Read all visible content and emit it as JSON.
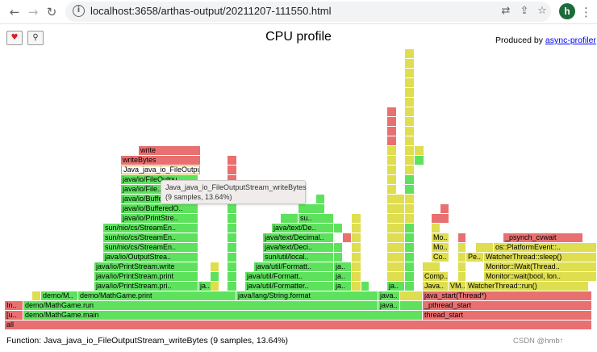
{
  "browser": {
    "url_host": "localhost:",
    "url_rest": "3658/arthas-output/20211207-111550.html",
    "avatar_letter": "h"
  },
  "page": {
    "title": "CPU profile",
    "produced_by": "Produced by",
    "produced_link": "async-profiler",
    "status": "Function: Java_java_io_FileOutputStream_writeBytes (9 samples, 13.64%)",
    "tooltip_line1": "Java_java_io_FileOutputStream_writeBytes",
    "tooltip_line2": "(9 samples, 13.64%)",
    "watermark": "CSDN @hmb↑"
  },
  "colors": {
    "red": "#e87070",
    "red_dark": "#e06060",
    "green": "#5ee25e",
    "green_dark": "#4fd04f",
    "yellow": "#dede50",
    "yellow_dark": "#d4d046",
    "highlight": "#ffffff"
  },
  "frames": [
    {
      "label": "all",
      "color": "red",
      "level": 0,
      "start": 0,
      "end": 728
    },
    {
      "label": "[u..",
      "color": "red",
      "level": 1,
      "start": 0,
      "end": 23
    },
    {
      "label": "demo/MathGame.main",
      "color": "green",
      "level": 1,
      "start": 23,
      "end": 518
    },
    {
      "label": "thread_start",
      "color": "red",
      "level": 1,
      "start": 518,
      "end": 728
    },
    {
      "label": "In..",
      "color": "red",
      "level": 2,
      "start": 0,
      "end": 23
    },
    {
      "label": "demo/MathGame.run",
      "color": "green",
      "level": 2,
      "start": 23,
      "end": 463
    },
    {
      "label": "java..",
      "color": "green",
      "level": 2,
      "start": 463,
      "end": 490
    },
    {
      "label": "",
      "color": "green",
      "level": 2,
      "start": 490,
      "end": 518
    },
    {
      "label": "_pthread_start",
      "color": "red",
      "level": 2,
      "start": 518,
      "end": 728
    },
    {
      "label": "",
      "color": "yellow",
      "level": 3,
      "start": 34,
      "end": 45
    },
    {
      "label": "demo/M..",
      "color": "green",
      "level": 3,
      "start": 45,
      "end": 91
    },
    {
      "label": "demo/MathGame.print",
      "color": "green",
      "level": 3,
      "start": 91,
      "end": 287
    },
    {
      "label": "java/lang/String.format",
      "color": "green",
      "level": 3,
      "start": 287,
      "end": 463
    },
    {
      "label": "java..",
      "color": "green",
      "level": 3,
      "start": 463,
      "end": 490
    },
    {
      "label": "",
      "color": "yellow",
      "level": 3,
      "start": 490,
      "end": 518
    },
    {
      "label": "java_start(Thread*)",
      "color": "red",
      "level": 3,
      "start": 518,
      "end": 728
    },
    {
      "label": "java/io/PrintStream.pri..",
      "color": "green",
      "level": 4,
      "start": 111,
      "end": 240
    },
    {
      "label": "ja..",
      "color": "green",
      "level": 4,
      "start": 240,
      "end": 262
    },
    {
      "label": "",
      "color": "yellow",
      "level": 4,
      "start": 255,
      "end": 266
    },
    {
      "label": "",
      "color": "green",
      "level": 4,
      "start": 276,
      "end": 288
    },
    {
      "label": "java/util/Formatter..",
      "color": "green",
      "level": 4,
      "start": 298,
      "end": 408
    },
    {
      "label": "ja..",
      "color": "green",
      "level": 4,
      "start": 408,
      "end": 430
    },
    {
      "label": "",
      "color": "yellow",
      "level": 4,
      "start": 430,
      "end": 442
    },
    {
      "label": "",
      "color": "green",
      "level": 4,
      "start": 442,
      "end": 452
    },
    {
      "label": "ja..",
      "color": "green",
      "level": 4,
      "start": 474,
      "end": 496
    },
    {
      "label": "",
      "color": "green",
      "level": 4,
      "start": 496,
      "end": 508
    },
    {
      "label": "Java..",
      "color": "yellow",
      "level": 4,
      "start": 518,
      "end": 550
    },
    {
      "label": "VM..",
      "color": "yellow",
      "level": 4,
      "start": 550,
      "end": 572
    },
    {
      "label": "WatcherThread::run()",
      "color": "yellow",
      "level": 4,
      "start": 572,
      "end": 724
    },
    {
      "label": "java/io/PrintStream.print",
      "color": "green",
      "level": 5,
      "start": 111,
      "end": 240
    },
    {
      "label": "",
      "color": "green",
      "level": 5,
      "start": 255,
      "end": 266
    },
    {
      "label": "",
      "color": "green",
      "level": 5,
      "start": 276,
      "end": 288
    },
    {
      "label": "java/util/Formatt..",
      "color": "green",
      "level": 5,
      "start": 298,
      "end": 408
    },
    {
      "label": "ja..",
      "color": "green",
      "level": 5,
      "start": 408,
      "end": 430
    },
    {
      "label": "",
      "color": "yellow",
      "level": 5,
      "start": 430,
      "end": 442
    },
    {
      "label": "",
      "color": "yellow",
      "level": 5,
      "start": 474,
      "end": 496
    },
    {
      "label": "",
      "color": "green",
      "level": 5,
      "start": 496,
      "end": 508
    },
    {
      "label": "Comp..",
      "color": "yellow",
      "level": 5,
      "start": 518,
      "end": 550
    },
    {
      "label": "",
      "color": "yellow",
      "level": 5,
      "start": 562,
      "end": 572
    },
    {
      "label": "Monitor::wait(bool, lon..",
      "color": "yellow",
      "level": 5,
      "start": 594,
      "end": 734
    },
    {
      "label": "java/io/PrintStream.write",
      "color": "green",
      "level": 6,
      "start": 111,
      "end": 240
    },
    {
      "label": "",
      "color": "yellow",
      "level": 6,
      "start": 255,
      "end": 266
    },
    {
      "label": "",
      "color": "green",
      "level": 6,
      "start": 276,
      "end": 288
    },
    {
      "label": "java/util/Formatt..",
      "color": "green",
      "level": 6,
      "start": 309,
      "end": 408
    },
    {
      "label": "ja..",
      "color": "green",
      "level": 6,
      "start": 408,
      "end": 430
    },
    {
      "label": "",
      "color": "yellow",
      "level": 6,
      "start": 430,
      "end": 442
    },
    {
      "label": "",
      "color": "yellow",
      "level": 6,
      "start": 474,
      "end": 496
    },
    {
      "label": "",
      "color": "green",
      "level": 6,
      "start": 496,
      "end": 508
    },
    {
      "label": "",
      "color": "yellow",
      "level": 6,
      "start": 518,
      "end": 540
    },
    {
      "label": "",
      "color": "yellow",
      "level": 6,
      "start": 562,
      "end": 572
    },
    {
      "label": "Monitor::IWait(Thread..",
      "color": "yellow",
      "level": 6,
      "start": 594,
      "end": 734
    },
    {
      "label": "java/io/OutputStrea..",
      "color": "green",
      "level": 7,
      "start": 122,
      "end": 240
    },
    {
      "label": "",
      "color": "green",
      "level": 7,
      "start": 276,
      "end": 288
    },
    {
      "label": "sun/util/local..",
      "color": "green",
      "level": 7,
      "start": 320,
      "end": 408
    },
    {
      "label": "",
      "color": "green",
      "level": 7,
      "start": 408,
      "end": 419
    },
    {
      "label": "",
      "color": "yellow",
      "level": 7,
      "start": 430,
      "end": 442
    },
    {
      "label": "",
      "color": "yellow",
      "level": 7,
      "start": 474,
      "end": 496
    },
    {
      "label": "",
      "color": "green",
      "level": 7,
      "start": 496,
      "end": 508
    },
    {
      "label": "Co..",
      "color": "yellow",
      "level": 7,
      "start": 529,
      "end": 551
    },
    {
      "label": "",
      "color": "yellow",
      "level": 7,
      "start": 562,
      "end": 572
    },
    {
      "label": "Pe..",
      "color": "yellow",
      "level": 7,
      "start": 572,
      "end": 594
    },
    {
      "label": "WatcherThread::sleep()",
      "color": "yellow",
      "level": 7,
      "start": 594,
      "end": 734
    },
    {
      "label": "sun/nio/cs/StreamEn..",
      "color": "green",
      "level": 8,
      "start": 122,
      "end": 240
    },
    {
      "label": "",
      "color": "green",
      "level": 8,
      "start": 276,
      "end": 288
    },
    {
      "label": "java/text/Deci..",
      "color": "green",
      "level": 8,
      "start": 320,
      "end": 408
    },
    {
      "label": "",
      "color": "green",
      "level": 8,
      "start": 408,
      "end": 419
    },
    {
      "label": "",
      "color": "yellow",
      "level": 8,
      "start": 430,
      "end": 442
    },
    {
      "label": "",
      "color": "yellow",
      "level": 8,
      "start": 474,
      "end": 496
    },
    {
      "label": "",
      "color": "green",
      "level": 8,
      "start": 496,
      "end": 508
    },
    {
      "label": "Mo..",
      "color": "yellow",
      "level": 8,
      "start": 529,
      "end": 551
    },
    {
      "label": "",
      "color": "yellow",
      "level": 8,
      "start": 562,
      "end": 572
    },
    {
      "label": "",
      "color": "yellow",
      "level": 8,
      "start": 584,
      "end": 606
    },
    {
      "label": "os::PlatformEvent::..",
      "color": "yellow",
      "level": 8,
      "start": 606,
      "end": 734
    },
    {
      "label": "sun/nio/cs/StreamEn..",
      "color": "green",
      "level": 9,
      "start": 122,
      "end": 240
    },
    {
      "label": "",
      "color": "green",
      "level": 9,
      "start": 276,
      "end": 288
    },
    {
      "label": "java/text/Decimal..",
      "color": "green",
      "level": 9,
      "start": 320,
      "end": 408
    },
    {
      "label": "",
      "color": "red",
      "level": 9,
      "start": 419,
      "end": 430
    },
    {
      "label": "",
      "color": "yellow",
      "level": 9,
      "start": 430,
      "end": 442
    },
    {
      "label": "",
      "color": "yellow",
      "level": 9,
      "start": 474,
      "end": 496
    },
    {
      "label": "",
      "color": "green",
      "level": 9,
      "start": 496,
      "end": 508
    },
    {
      "label": "Mo..",
      "color": "yellow",
      "level": 9,
      "start": 529,
      "end": 551
    },
    {
      "label": "",
      "color": "red",
      "level": 9,
      "start": 562,
      "end": 572
    },
    {
      "label": "_psynch_cvwait",
      "color": "red",
      "level": 9,
      "start": 618,
      "end": 717
    },
    {
      "label": "sun/nio/cs/StreamEn..",
      "color": "green",
      "level": 10,
      "start": 122,
      "end": 240
    },
    {
      "label": "",
      "color": "green",
      "level": 10,
      "start": 276,
      "end": 288
    },
    {
      "label": "java/text/De..",
      "color": "green",
      "level": 10,
      "start": 331,
      "end": 408
    },
    {
      "label": "",
      "color": "green",
      "level": 10,
      "start": 408,
      "end": 419
    },
    {
      "label": "",
      "color": "yellow",
      "level": 10,
      "start": 430,
      "end": 442
    },
    {
      "label": "",
      "color": "yellow",
      "level": 10,
      "start": 474,
      "end": 496
    },
    {
      "label": "",
      "color": "green",
      "level": 10,
      "start": 496,
      "end": 508
    },
    {
      "label": "",
      "color": "yellow",
      "level": 10,
      "start": 529,
      "end": 540
    },
    {
      "label": "java/io/PrintStre..",
      "color": "green",
      "level": 11,
      "start": 144,
      "end": 240
    },
    {
      "label": "",
      "color": "green",
      "level": 11,
      "start": 276,
      "end": 288
    },
    {
      "label": "",
      "color": "green",
      "level": 11,
      "start": 342,
      "end": 364
    },
    {
      "label": "su..",
      "color": "green",
      "level": 11,
      "start": 364,
      "end": 408
    },
    {
      "label": "",
      "color": "yellow",
      "level": 11,
      "start": 430,
      "end": 442
    },
    {
      "label": "",
      "color": "yellow",
      "level": 11,
      "start": 474,
      "end": 496
    },
    {
      "label": "",
      "color": "yellow",
      "level": 11,
      "start": 496,
      "end": 508
    },
    {
      "label": "",
      "color": "red",
      "level": 11,
      "start": 529,
      "end": 551
    },
    {
      "label": "java/io/BufferedO..",
      "color": "green",
      "level": 12,
      "start": 144,
      "end": 240
    },
    {
      "label": "",
      "color": "green",
      "level": 12,
      "start": 276,
      "end": 288
    },
    {
      "label": "",
      "color": "green",
      "level": 12,
      "start": 364,
      "end": 397
    },
    {
      "label": "",
      "color": "yellow",
      "level": 12,
      "start": 474,
      "end": 496
    },
    {
      "label": "",
      "color": "yellow",
      "level": 12,
      "start": 496,
      "end": 508
    },
    {
      "label": "",
      "color": "red",
      "level": 12,
      "start": 540,
      "end": 551
    },
    {
      "label": "java/io/Buffere..",
      "color": "green",
      "level": 13,
      "start": 144,
      "end": 240
    },
    {
      "label": "",
      "color": "green",
      "level": 13,
      "start": 276,
      "end": 288
    },
    {
      "label": "",
      "color": "green",
      "level": 13,
      "start": 386,
      "end": 397
    },
    {
      "label": "",
      "color": "yellow",
      "level": 13,
      "start": 474,
      "end": 496
    },
    {
      "label": "",
      "color": "yellow",
      "level": 13,
      "start": 496,
      "end": 508
    },
    {
      "label": "java/io/File..",
      "color": "green",
      "level": 14,
      "start": 144,
      "end": 240
    },
    {
      "label": "",
      "color": "green",
      "level": 14,
      "start": 276,
      "end": 288
    },
    {
      "label": "",
      "color": "yellow",
      "level": 14,
      "start": 474,
      "end": 486
    },
    {
      "label": "",
      "color": "green",
      "level": 14,
      "start": 496,
      "end": 508
    },
    {
      "label": "java/io/FileOutpu..",
      "color": "green",
      "level": 15,
      "start": 144,
      "end": 240
    },
    {
      "label": "",
      "color": "red",
      "level": 15,
      "start": 276,
      "end": 288
    },
    {
      "label": "",
      "color": "yellow",
      "level": 15,
      "start": 474,
      "end": 486
    },
    {
      "label": "",
      "color": "green",
      "level": 15,
      "start": 496,
      "end": 508
    },
    {
      "label": "Java_java_io_FileOutput",
      "color": "highlight",
      "level": 16,
      "start": 144,
      "end": 243
    },
    {
      "label": "",
      "color": "red",
      "level": 16,
      "start": 276,
      "end": 288
    },
    {
      "label": "",
      "color": "yellow",
      "level": 16,
      "start": 474,
      "end": 486
    },
    {
      "label": "",
      "color": "yellow",
      "level": 16,
      "start": 496,
      "end": 508
    },
    {
      "label": "writeBytes",
      "color": "red",
      "level": 17,
      "start": 144,
      "end": 243
    },
    {
      "label": "",
      "color": "red",
      "level": 17,
      "start": 276,
      "end": 288
    },
    {
      "label": "",
      "color": "yellow",
      "level": 17,
      "start": 474,
      "end": 486
    },
    {
      "label": "",
      "color": "yellow",
      "level": 17,
      "start": 496,
      "end": 508
    },
    {
      "label": "",
      "color": "green",
      "level": 17,
      "start": 508,
      "end": 520
    },
    {
      "label": "write",
      "color": "red",
      "level": 18,
      "start": 166,
      "end": 243
    },
    {
      "label": "",
      "color": "yellow",
      "level": 18,
      "start": 474,
      "end": 486
    },
    {
      "label": "",
      "color": "yellow",
      "level": 18,
      "start": 496,
      "end": 508
    },
    {
      "label": "",
      "color": "yellow",
      "level": 18,
      "start": 508,
      "end": 520
    },
    {
      "label": "",
      "color": "red",
      "level": 19,
      "start": 474,
      "end": 486
    },
    {
      "label": "",
      "color": "yellow",
      "level": 19,
      "start": 496,
      "end": 508
    },
    {
      "label": "",
      "color": "red",
      "level": 20,
      "start": 474,
      "end": 486
    },
    {
      "label": "",
      "color": "yellow",
      "level": 20,
      "start": 496,
      "end": 508
    },
    {
      "label": "",
      "color": "red",
      "level": 21,
      "start": 474,
      "end": 486
    },
    {
      "label": "",
      "color": "yellow",
      "level": 21,
      "start": 496,
      "end": 508
    },
    {
      "label": "",
      "color": "red",
      "level": 22,
      "start": 474,
      "end": 486
    },
    {
      "label": "",
      "color": "yellow",
      "level": 22,
      "start": 496,
      "end": 508
    },
    {
      "label": "",
      "color": "yellow",
      "level": 23,
      "start": 496,
      "end": 508
    },
    {
      "label": "",
      "color": "yellow",
      "level": 24,
      "start": 496,
      "end": 508
    },
    {
      "label": "",
      "color": "yellow",
      "level": 25,
      "start": 496,
      "end": 508
    },
    {
      "label": "",
      "color": "yellow",
      "level": 26,
      "start": 496,
      "end": 508
    },
    {
      "label": "",
      "color": "yellow",
      "level": 27,
      "start": 496,
      "end": 508
    },
    {
      "label": "",
      "color": "yellow",
      "level": 28,
      "start": 496,
      "end": 508
    }
  ]
}
